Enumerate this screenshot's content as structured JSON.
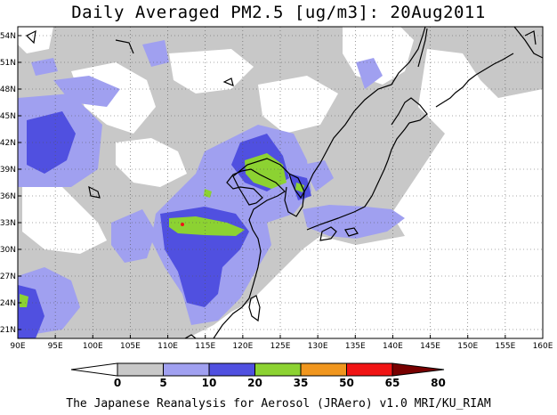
{
  "title": "Daily Averaged PM2.5 [ug/m3]: 20Aug2011",
  "footer": "The Japanese Reanalysis for Aerosol (JRAero) v1.0 MRI/KU_RIAM",
  "map": {
    "lon_range": [
      90,
      160
    ],
    "lat_range": [
      20,
      55
    ],
    "lon_labels": [
      "90E",
      "95E",
      "100E",
      "105E",
      "110E",
      "115E",
      "120E",
      "125E",
      "130E",
      "135E",
      "140E",
      "145E",
      "150E",
      "155E",
      "160E"
    ],
    "lat_labels": [
      "21N",
      "24N",
      "27N",
      "30N",
      "33N",
      "36N",
      "39N",
      "42N",
      "45N",
      "48N",
      "51N",
      "54N"
    ],
    "grid": "dotted"
  },
  "legend": {
    "labels": [
      "0",
      "5",
      "10",
      "20",
      "35",
      "50",
      "65",
      "80"
    ],
    "colors": [
      "#ffffff",
      "#c8c8c8",
      "#a0a0f0",
      "#5050e0",
      "#8cd232",
      "#f0961e",
      "#f01414",
      "#780000"
    ]
  }
}
